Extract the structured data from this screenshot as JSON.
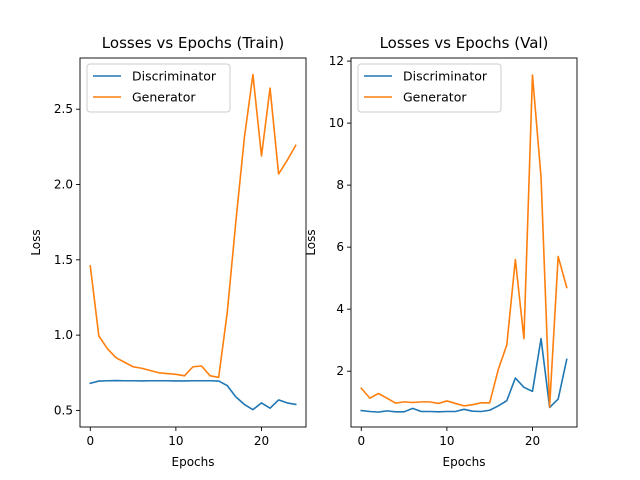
{
  "chart_data": [
    {
      "type": "line",
      "title": "Losses vs Epochs (Train)",
      "xlabel": "Epochs",
      "ylabel": "Loss",
      "xlim": [
        -1.2,
        25.2
      ],
      "ylim": [
        0.39,
        2.84
      ],
      "xticks": [
        0,
        10,
        20
      ],
      "yticks": [
        0.5,
        1.0,
        1.5,
        2.0,
        2.5
      ],
      "ytick_labels": [
        "0.5",
        "1.0",
        "1.5",
        "2.0",
        "2.5"
      ],
      "grid": false,
      "legend_position": "top-left",
      "x": [
        0,
        1,
        2,
        3,
        4,
        5,
        6,
        7,
        8,
        9,
        10,
        11,
        12,
        13,
        14,
        15,
        16,
        17,
        18,
        19,
        20,
        21,
        22,
        23,
        24
      ],
      "series": [
        {
          "name": "Discriminator",
          "color": "#1f77b4",
          "values": [
            0.68,
            0.695,
            0.697,
            0.698,
            0.697,
            0.697,
            0.696,
            0.697,
            0.697,
            0.697,
            0.696,
            0.696,
            0.697,
            0.697,
            0.697,
            0.695,
            0.665,
            0.59,
            0.54,
            0.505,
            0.55,
            0.515,
            0.57,
            0.55,
            0.54
          ]
        },
        {
          "name": "Generator",
          "color": "#ff7f0e",
          "values": [
            1.46,
            0.995,
            0.91,
            0.85,
            0.82,
            0.79,
            0.78,
            0.765,
            0.75,
            0.745,
            0.74,
            0.73,
            0.79,
            0.795,
            0.73,
            0.72,
            1.15,
            1.75,
            2.31,
            2.73,
            2.19,
            2.64,
            2.07,
            2.16,
            2.26
          ]
        }
      ]
    },
    {
      "type": "line",
      "title": "Losses vs Epochs (Val)",
      "xlabel": "Epochs",
      "ylabel": "Loss",
      "xlim": [
        -1.2,
        25.2
      ],
      "ylim": [
        0.2,
        12.1
      ],
      "xticks": [
        0,
        10,
        20
      ],
      "yticks": [
        2,
        4,
        6,
        8,
        10,
        12
      ],
      "ytick_labels": [
        "2",
        "4",
        "6",
        "8",
        "10",
        "12"
      ],
      "grid": false,
      "legend_position": "top-left",
      "x": [
        0,
        1,
        2,
        3,
        4,
        5,
        6,
        7,
        8,
        9,
        10,
        11,
        12,
        13,
        14,
        15,
        16,
        17,
        18,
        19,
        20,
        21,
        22,
        23,
        24
      ],
      "series": [
        {
          "name": "Discriminator",
          "color": "#1f77b4",
          "values": [
            0.73,
            0.7,
            0.68,
            0.72,
            0.69,
            0.69,
            0.8,
            0.7,
            0.7,
            0.69,
            0.7,
            0.7,
            0.77,
            0.71,
            0.7,
            0.74,
            0.88,
            1.05,
            1.78,
            1.48,
            1.35,
            3.05,
            0.83,
            1.1,
            2.38
          ]
        },
        {
          "name": "Generator",
          "color": "#ff7f0e",
          "values": [
            1.45,
            1.13,
            1.28,
            1.13,
            0.97,
            1.01,
            0.99,
            1.01,
            1.01,
            0.96,
            1.04,
            0.96,
            0.88,
            0.92,
            0.98,
            0.98,
            2.05,
            2.85,
            5.6,
            3.05,
            11.55,
            8.25,
            0.85,
            5.7,
            4.7
          ]
        }
      ]
    }
  ]
}
